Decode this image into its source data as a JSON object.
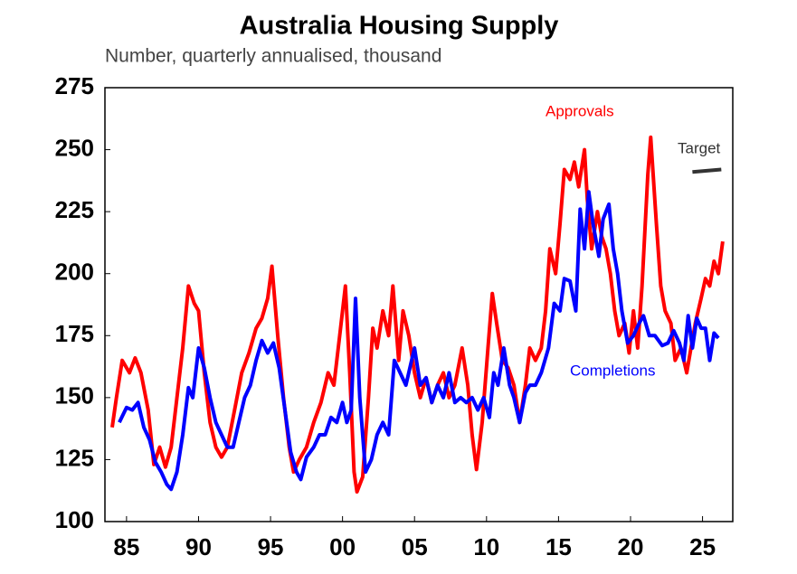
{
  "chart_data": {
    "type": "line",
    "title": "Australia Housing Supply",
    "subtitle": "Number, quarterly annualised, thousand",
    "xlim": [
      1983.5,
      2027.1
    ],
    "xticks": [
      {
        "value": 1985,
        "label": "85"
      },
      {
        "value": 1990,
        "label": "90"
      },
      {
        "value": 1995,
        "label": "95"
      },
      {
        "value": 2000,
        "label": "00"
      },
      {
        "value": 2005,
        "label": "05"
      },
      {
        "value": 2010,
        "label": "10"
      },
      {
        "value": 2015,
        "label": "15"
      },
      {
        "value": 2020,
        "label": "20"
      },
      {
        "value": 2025,
        "label": "25"
      }
    ],
    "ylim": [
      100,
      275
    ],
    "yticks": [
      100,
      125,
      150,
      175,
      200,
      225,
      250,
      275
    ],
    "grid": false,
    "series": [
      {
        "name": "Approvals",
        "color": "#ff0000",
        "x": [
          1984.0,
          1984.3,
          1984.7,
          1985.2,
          1985.6,
          1986.0,
          1986.5,
          1986.9,
          1987.3,
          1987.7,
          1988.1,
          1988.5,
          1988.9,
          1989.3,
          1989.7,
          1990.0,
          1990.4,
          1990.8,
          1991.2,
          1991.6,
          1992.0,
          1992.5,
          1993.0,
          1993.5,
          1994.0,
          1994.4,
          1994.8,
          1995.1,
          1995.5,
          1995.9,
          1996.3,
          1996.6,
          1997.0,
          1997.5,
          1998.0,
          1998.5,
          1999.0,
          1999.4,
          1999.8,
          2000.2,
          2000.5,
          2000.8,
          2001.0,
          2001.4,
          2001.8,
          2002.1,
          2002.4,
          2002.8,
          2003.2,
          2003.5,
          2003.9,
          2004.2,
          2004.6,
          2005.0,
          2005.4,
          2005.8,
          2006.2,
          2006.6,
          2007.0,
          2007.4,
          2007.8,
          2008.3,
          2008.7,
          2009.0,
          2009.3,
          2009.7,
          2010.1,
          2010.4,
          2010.7,
          2011.1,
          2011.5,
          2011.9,
          2012.3,
          2012.7,
          2013.0,
          2013.4,
          2013.8,
          2014.1,
          2014.4,
          2014.8,
          2015.1,
          2015.4,
          2015.8,
          2016.1,
          2016.4,
          2016.8,
          2017.0,
          2017.3,
          2017.7,
          2018.0,
          2018.3,
          2018.6,
          2018.9,
          2019.2,
          2019.6,
          2019.9,
          2020.2,
          2020.5,
          2020.8,
          2021.2,
          2021.4,
          2021.8,
          2022.1,
          2022.4,
          2022.8,
          2023.1,
          2023.5,
          2023.9,
          2024.2,
          2024.5,
          2024.9,
          2025.2,
          2025.5,
          2025.8,
          2026.1,
          2026.4
        ],
        "values": [
          138,
          150,
          165,
          160,
          166,
          160,
          145,
          123,
          130,
          122,
          130,
          150,
          170,
          195,
          188,
          185,
          160,
          140,
          130,
          126,
          130,
          145,
          160,
          168,
          178,
          182,
          190,
          203,
          175,
          150,
          130,
          120,
          125,
          130,
          140,
          148,
          160,
          155,
          175,
          195,
          160,
          120,
          112,
          118,
          150,
          178,
          170,
          185,
          175,
          195,
          165,
          185,
          175,
          160,
          150,
          158,
          148,
          155,
          160,
          150,
          155,
          170,
          155,
          135,
          121,
          140,
          170,
          192,
          180,
          165,
          162,
          155,
          140,
          155,
          170,
          165,
          170,
          185,
          210,
          200,
          220,
          242,
          238,
          245,
          235,
          250,
          230,
          210,
          225,
          215,
          210,
          200,
          185,
          175,
          180,
          168,
          185,
          170,
          195,
          240,
          255,
          220,
          195,
          185,
          180,
          165,
          170,
          160,
          170,
          180,
          190,
          198,
          195,
          205,
          200,
          213
        ]
      },
      {
        "name": "Completions",
        "color": "#0000ff",
        "x": [
          1984.5,
          1985.0,
          1985.4,
          1985.8,
          1986.2,
          1986.6,
          1987.0,
          1987.4,
          1987.8,
          1988.1,
          1988.5,
          1988.9,
          1989.3,
          1989.6,
          1990.0,
          1990.4,
          1990.8,
          1991.2,
          1991.6,
          1992.0,
          1992.4,
          1992.8,
          1993.2,
          1993.6,
          1994.0,
          1994.4,
          1994.8,
          1995.2,
          1995.6,
          1996.0,
          1996.4,
          1996.8,
          1997.1,
          1997.5,
          1998.0,
          1998.4,
          1998.8,
          1999.2,
          1999.6,
          2000.0,
          2000.3,
          2000.6,
          2000.9,
          2001.2,
          2001.6,
          2002.0,
          2002.4,
          2002.8,
          2003.2,
          2003.6,
          2004.0,
          2004.4,
          2004.8,
          2005.0,
          2005.4,
          2005.8,
          2006.2,
          2006.6,
          2007.0,
          2007.4,
          2007.8,
          2008.2,
          2008.6,
          2009.0,
          2009.4,
          2009.8,
          2010.2,
          2010.5,
          2010.8,
          2011.2,
          2011.6,
          2011.9,
          2012.3,
          2012.7,
          2013.0,
          2013.4,
          2013.8,
          2014.3,
          2014.7,
          2015.1,
          2015.4,
          2015.8,
          2016.2,
          2016.5,
          2016.8,
          2017.1,
          2017.4,
          2017.8,
          2018.1,
          2018.5,
          2018.8,
          2019.1,
          2019.4,
          2019.8,
          2020.2,
          2020.6,
          2020.9,
          2021.3,
          2021.7,
          2022.2,
          2022.6,
          2023.0,
          2023.4,
          2023.7,
          2024.0,
          2024.3,
          2024.6,
          2024.9,
          2025.2,
          2025.5,
          2025.8,
          2026.1
        ],
        "values": [
          140,
          146,
          145,
          148,
          138,
          133,
          124,
          120,
          115,
          113,
          120,
          135,
          154,
          150,
          170,
          162,
          150,
          140,
          135,
          130,
          130,
          140,
          150,
          155,
          165,
          173,
          168,
          172,
          162,
          145,
          128,
          120,
          117,
          126,
          130,
          135,
          135,
          142,
          140,
          148,
          140,
          145,
          190,
          150,
          120,
          125,
          135,
          140,
          135,
          165,
          160,
          155,
          165,
          170,
          155,
          158,
          148,
          155,
          150,
          160,
          148,
          150,
          148,
          150,
          145,
          150,
          142,
          160,
          155,
          170,
          155,
          150,
          140,
          152,
          155,
          155,
          160,
          170,
          188,
          185,
          198,
          197,
          185,
          226,
          210,
          233,
          220,
          207,
          222,
          228,
          210,
          200,
          185,
          172,
          175,
          180,
          183,
          175,
          175,
          171,
          172,
          177,
          172,
          165,
          183,
          170,
          182,
          178,
          178,
          165,
          176,
          174
        ]
      },
      {
        "name": "Target",
        "color": "#333333",
        "x": [
          2024.3,
          2026.3
        ],
        "values": [
          241,
          242
        ]
      }
    ]
  }
}
